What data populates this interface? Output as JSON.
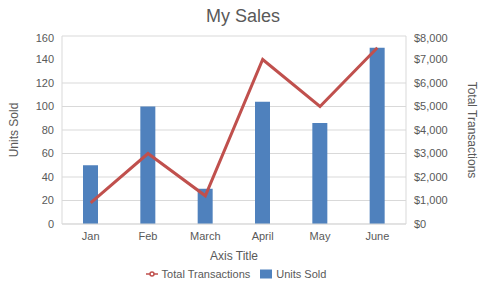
{
  "chart_data": {
    "type": "bar",
    "title": "My Sales",
    "x_label": "Axis Title",
    "y_label": "Units Sold",
    "y2_label": "Total Transactions",
    "categories": [
      "Jan",
      "Feb",
      "March",
      "April",
      "May",
      "June"
    ],
    "series": [
      {
        "name": "Units Sold",
        "type": "bar",
        "color": "#4f81bd",
        "values": [
          50,
          100,
          30,
          104,
          86,
          150
        ]
      },
      {
        "name": "Total Transactions",
        "type": "line",
        "axis": "y2",
        "color": "#c0504d",
        "values": [
          900,
          3000,
          1200,
          7000,
          5000,
          7500
        ]
      }
    ],
    "ylim": [
      0,
      160
    ],
    "yticks": [
      0,
      20,
      40,
      60,
      80,
      100,
      120,
      140,
      160
    ],
    "y2lim": [
      0,
      8000
    ],
    "y2ticks": [
      {
        "value": 0,
        "label": "$0"
      },
      {
        "value": 1000,
        "label": "$1,000"
      },
      {
        "value": 2000,
        "label": "$2,000"
      },
      {
        "value": 3000,
        "label": "$3,000"
      },
      {
        "value": 4000,
        "label": "$4,000"
      },
      {
        "value": 5000,
        "label": "$5,000"
      },
      {
        "value": 6000,
        "label": "$6,000"
      },
      {
        "value": 7000,
        "label": "$7,000"
      },
      {
        "value": 8000,
        "label": "$8,000"
      }
    ],
    "grid": true,
    "legend": "bottom"
  }
}
